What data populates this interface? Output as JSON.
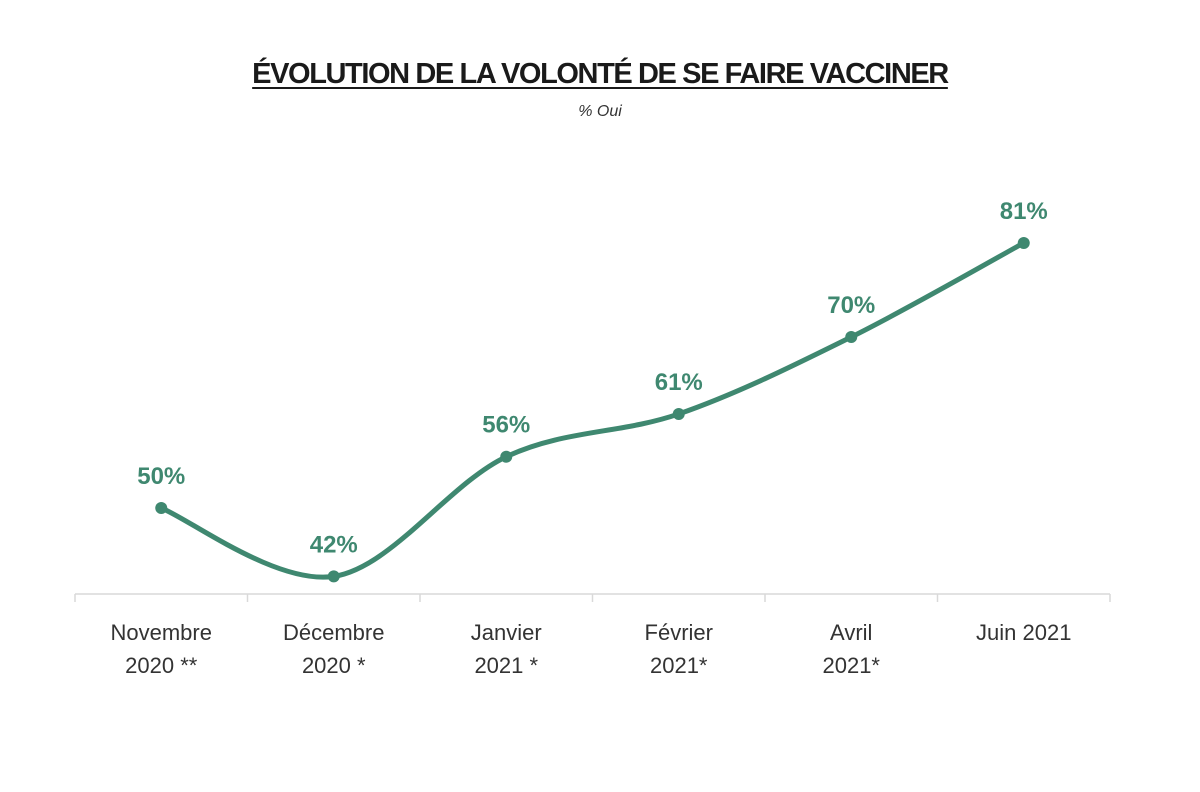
{
  "chart_data": {
    "type": "line",
    "title": "ÉVOLUTION DE LA VOLONTÉ DE SE FAIRE VACCINER",
    "subtitle": "% Oui",
    "categories": [
      [
        "Novembre",
        "2020 **"
      ],
      [
        "Décembre",
        "2020 *"
      ],
      [
        "Janvier",
        "2021 *"
      ],
      [
        "Février",
        "2021*"
      ],
      [
        "Avril",
        "2021*"
      ],
      [
        "Juin 2021"
      ]
    ],
    "series": [
      {
        "name": "% Oui",
        "values": [
          50,
          42,
          56,
          61,
          70,
          81
        ],
        "labels": [
          "50%",
          "42%",
          "56%",
          "61%",
          "70%",
          "81%"
        ]
      }
    ],
    "ylim": [
      30,
      90
    ],
    "grid": false,
    "legend": "none",
    "colors": {
      "line": "#3f8870",
      "axis": "#d9d9d9",
      "text": "#333333"
    }
  }
}
